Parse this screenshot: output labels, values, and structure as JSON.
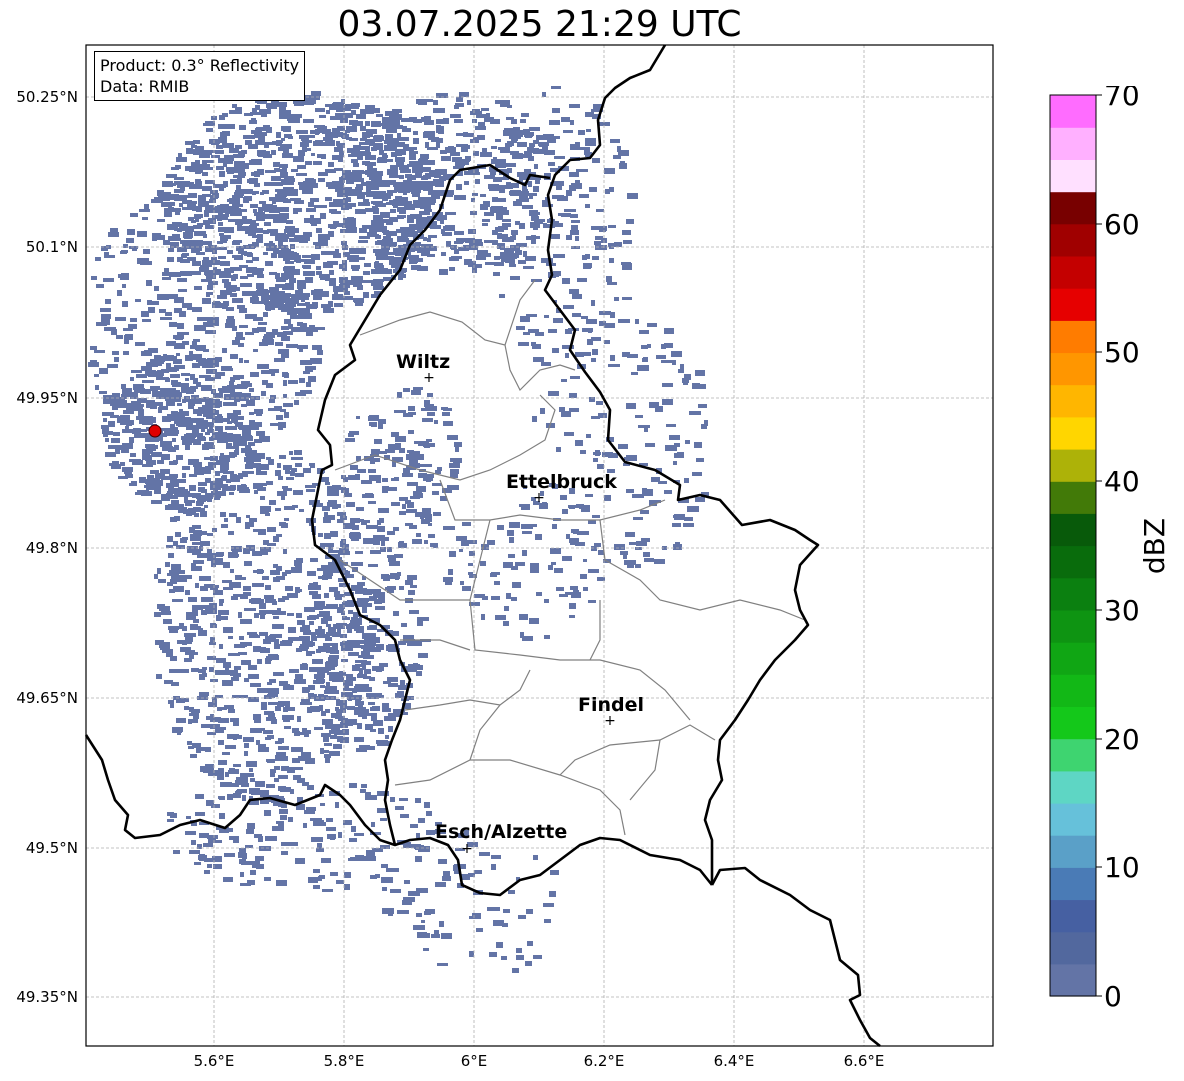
{
  "title": "03.07.2025 21:29 UTC",
  "info": {
    "product": "Product: 0.3° Reflectivity",
    "source": "Data: RMIB"
  },
  "axes": {
    "lon_ticks": [
      "5.6°E",
      "5.8°E",
      "6°E",
      "6.2°E",
      "6.4°E",
      "6.6°E"
    ],
    "lat_ticks": [
      "50.25°N",
      "50.1°N",
      "49.95°N",
      "49.8°N",
      "49.65°N",
      "49.5°N",
      "49.35°N"
    ]
  },
  "cities": [
    {
      "name": "Wiltz"
    },
    {
      "name": "Ettelbruck"
    },
    {
      "name": "Findel"
    },
    {
      "name": "Esch/Alzette"
    }
  ],
  "colorbar": {
    "label": "dBZ",
    "ticks": [
      "70",
      "60",
      "50",
      "40",
      "30",
      "20",
      "10",
      "0"
    ],
    "colors": [
      "#6374a6",
      "#52689e",
      "#4660a2",
      "#4a7bb6",
      "#5aa0c8",
      "#66c1da",
      "#5ed6c4",
      "#3ed470",
      "#14c81a",
      "#12b816",
      "#10a614",
      "#0e9412",
      "#0b8010",
      "#096c0c",
      "#085a0a",
      "#427a08",
      "#adb208",
      "#ffd600",
      "#ffb600",
      "#ff9600",
      "#ff7c00",
      "#e60000",
      "#c40000",
      "#a00000",
      "#780000",
      "#ffe0ff",
      "#ffb0ff",
      "#ff6cff",
      "#ee36ee"
    ]
  },
  "colors": {
    "echo": "#6374a6",
    "border": "#000000",
    "canton": "#808080",
    "radar_site": "#e00000"
  }
}
